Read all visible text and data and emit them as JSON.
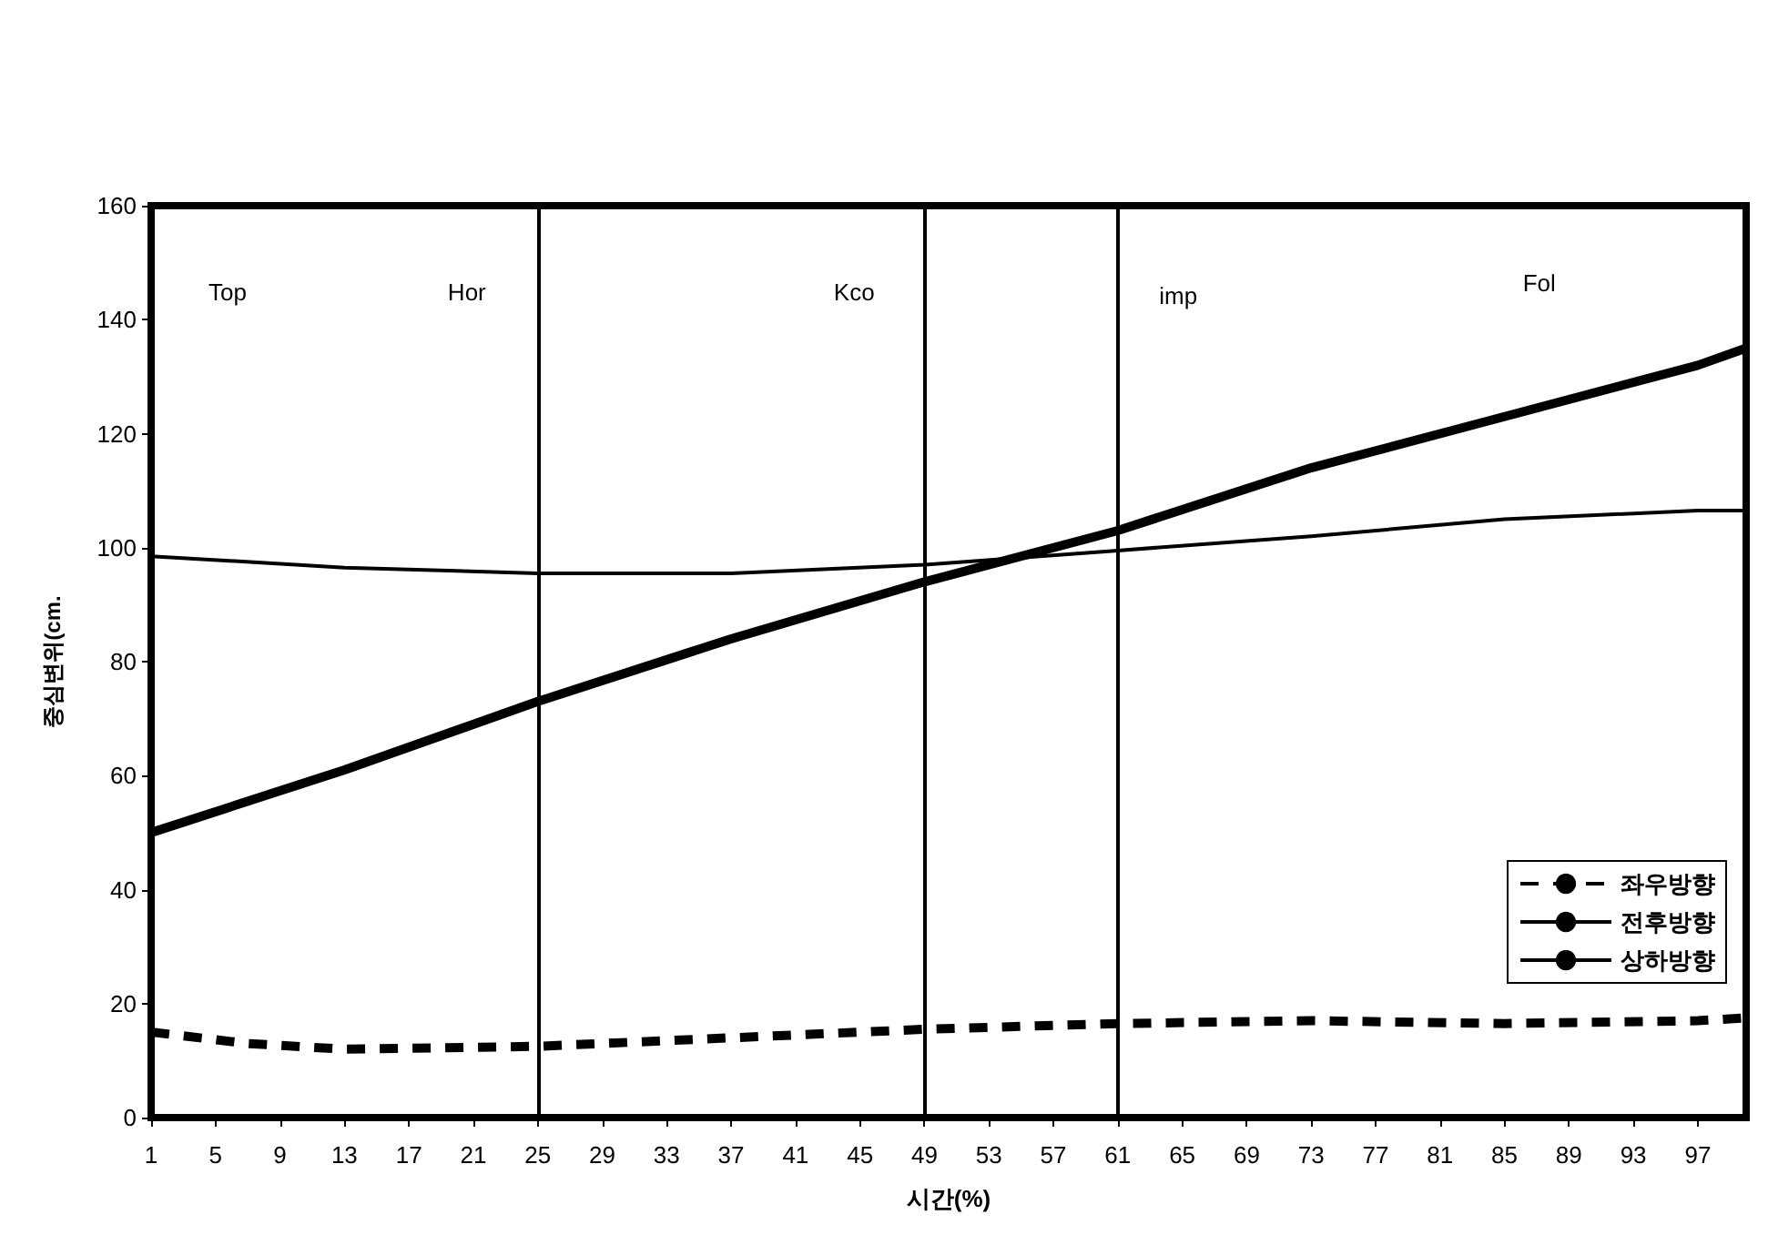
{
  "chart_data": {
    "type": "line",
    "xlabel": "시간(%)",
    "ylabel": "중심변위(cm.",
    "xlim": [
      1,
      100
    ],
    "xticks": [
      1,
      5,
      9,
      13,
      17,
      21,
      25,
      29,
      33,
      37,
      41,
      45,
      49,
      53,
      57,
      61,
      65,
      69,
      73,
      77,
      81,
      85,
      89,
      93,
      97
    ],
    "ylim": [
      0,
      160
    ],
    "yticks": [
      0,
      20,
      40,
      60,
      80,
      100,
      120,
      140,
      160
    ],
    "grid": false,
    "legend": "right",
    "marker": "none",
    "series": [
      {
        "name": "좌우방향",
        "color": "#000000",
        "line_style": "dashed",
        "x": [
          1,
          7,
          13,
          25,
          37,
          49,
          61,
          73,
          85,
          97,
          100
        ],
        "values": [
          15,
          13,
          12,
          12.5,
          14,
          15.5,
          16.5,
          17,
          16.5,
          17,
          17.5
        ]
      },
      {
        "name": "전후방향",
        "color": "#000000",
        "line_style": "solid",
        "x": [
          1,
          13,
          25,
          37,
          49,
          61,
          73,
          85,
          97,
          100
        ],
        "values": [
          50,
          61,
          73,
          84,
          94,
          103,
          114,
          123,
          132,
          135
        ]
      },
      {
        "name": "상하방향",
        "color": "#000000",
        "line_style": "solid",
        "x": [
          1,
          13,
          25,
          37,
          49,
          61,
          73,
          85,
          97,
          100
        ],
        "values": [
          98.5,
          96.5,
          95.5,
          95.5,
          97,
          99.5,
          102,
          105,
          106.5,
          106.5
        ]
      }
    ],
    "ref_lines": [
      {
        "axis": "x",
        "value": 25,
        "color": "#000000"
      },
      {
        "axis": "x",
        "value": 49,
        "color": "#000000"
      },
      {
        "axis": "x",
        "value": 61,
        "color": "#000000"
      }
    ],
    "annotations": [
      "Top",
      "Hor",
      "Kco",
      "imp",
      "Fol"
    ]
  }
}
